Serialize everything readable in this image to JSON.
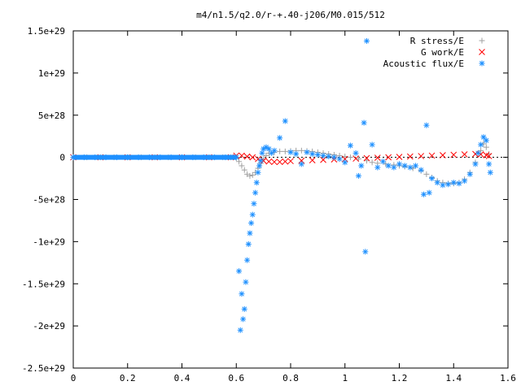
{
  "chart_data": {
    "type": "scatter",
    "title": "m4/n1.5/q2.0/r-+.40-j206/M0.015/512",
    "xlabel": "",
    "ylabel": "",
    "xlim": [
      0,
      1.6
    ],
    "ylim": [
      -2.5e+29,
      1.5e+29
    ],
    "x_ticks": [
      {
        "value": 0,
        "label": "0"
      },
      {
        "value": 0.2,
        "label": "0.2"
      },
      {
        "value": 0.4,
        "label": "0.4"
      },
      {
        "value": 0.6,
        "label": "0.6"
      },
      {
        "value": 0.8,
        "label": "0.8"
      },
      {
        "value": 1.0,
        "label": "1"
      },
      {
        "value": 1.2,
        "label": "1.2"
      },
      {
        "value": 1.4,
        "label": "1.4"
      },
      {
        "value": 1.6,
        "label": "1.6"
      }
    ],
    "y_ticks": [
      {
        "value": 1.5e+29,
        "label": "1.5e+29"
      },
      {
        "value": 1e+29,
        "label": "1e+29"
      },
      {
        "value": 5e+28,
        "label": "5e+28"
      },
      {
        "value": 0,
        "label": "0"
      },
      {
        "value": -5e+28,
        "label": "-5e+28"
      },
      {
        "value": -1e+29,
        "label": "-1e+29"
      },
      {
        "value": -1.5e+29,
        "label": "-1.5e+29"
      },
      {
        "value": -2e+29,
        "label": "-2e+29"
      },
      {
        "value": -2.5e+29,
        "label": "-2.5e+29"
      }
    ],
    "legend_position": "top-right",
    "grid": false,
    "series": [
      {
        "name": "R stress/E",
        "marker": "plus",
        "color": "#a0a0a0",
        "points": [
          [
            0.0,
            0
          ],
          [
            0.05,
            0
          ],
          [
            0.1,
            0
          ],
          [
            0.15,
            0
          ],
          [
            0.2,
            0
          ],
          [
            0.25,
            0
          ],
          [
            0.3,
            0
          ],
          [
            0.35,
            0
          ],
          [
            0.4,
            0
          ],
          [
            0.45,
            0
          ],
          [
            0.5,
            0
          ],
          [
            0.55,
            0
          ],
          [
            0.58,
            0
          ],
          [
            0.6,
            -1e+27
          ],
          [
            0.61,
            -5e+27
          ],
          [
            0.62,
            -1e+28
          ],
          [
            0.63,
            -1.5e+28
          ],
          [
            0.64,
            -2e+28
          ],
          [
            0.65,
            -2.2e+28
          ],
          [
            0.66,
            -2.1e+28
          ],
          [
            0.67,
            -1.8e+28
          ],
          [
            0.68,
            -1.3e+28
          ],
          [
            0.69,
            -7e+27
          ],
          [
            0.7,
            -2e+27
          ],
          [
            0.71,
            2e+27
          ],
          [
            0.72,
            5e+27
          ],
          [
            0.74,
            6e+27
          ],
          [
            0.76,
            7e+27
          ],
          [
            0.78,
            7e+27
          ],
          [
            0.8,
            7.5e+27
          ],
          [
            0.82,
            8e+27
          ],
          [
            0.84,
            8e+27
          ],
          [
            0.86,
            7.5e+27
          ],
          [
            0.88,
            7e+27
          ],
          [
            0.9,
            6e+27
          ],
          [
            0.92,
            5e+27
          ],
          [
            0.94,
            4e+27
          ],
          [
            0.96,
            3e+27
          ],
          [
            0.98,
            2e+27
          ],
          [
            1.0,
            1e+27
          ],
          [
            1.02,
            0.0
          ],
          [
            1.05,
            -2e+27
          ],
          [
            1.08,
            -4e+27
          ],
          [
            1.1,
            -6e+27
          ],
          [
            1.12,
            -7e+27
          ],
          [
            1.15,
            -8e+27
          ],
          [
            1.18,
            -9e+27
          ],
          [
            1.2,
            -1e+28
          ],
          [
            1.22,
            -1.1e+28
          ],
          [
            1.25,
            -1.3e+28
          ],
          [
            1.28,
            -1.6e+28
          ],
          [
            1.3,
            -2e+28
          ],
          [
            1.32,
            -2.4e+28
          ],
          [
            1.34,
            -2.8e+28
          ],
          [
            1.36,
            -3e+28
          ],
          [
            1.38,
            -3.1e+28
          ],
          [
            1.4,
            -3.1e+28
          ],
          [
            1.42,
            -3e+28
          ],
          [
            1.44,
            -2.6e+28
          ],
          [
            1.46,
            -1.8e+28
          ],
          [
            1.48,
            -6e+27
          ],
          [
            1.5,
            8e+27
          ],
          [
            1.51,
            1.6e+28
          ],
          [
            1.52,
            1.2e+28
          ],
          [
            1.53,
            4e+27
          ]
        ]
      },
      {
        "name": "G work/E",
        "marker": "cross",
        "color": "#ff0000",
        "points": [
          [
            0.0,
            0
          ],
          [
            0.1,
            0
          ],
          [
            0.2,
            0
          ],
          [
            0.3,
            0
          ],
          [
            0.4,
            0
          ],
          [
            0.5,
            0
          ],
          [
            0.58,
            0
          ],
          [
            0.6,
            2e+27
          ],
          [
            0.62,
            2e+27
          ],
          [
            0.64,
            1e+27
          ],
          [
            0.66,
            0.0
          ],
          [
            0.68,
            -2e+27
          ],
          [
            0.7,
            -4e+27
          ],
          [
            0.72,
            -5e+27
          ],
          [
            0.74,
            -5.5e+27
          ],
          [
            0.76,
            -5.5e+27
          ],
          [
            0.78,
            -5e+27
          ],
          [
            0.8,
            -4.5e+27
          ],
          [
            0.84,
            -4e+27
          ],
          [
            0.88,
            -3.5e+27
          ],
          [
            0.92,
            -3e+27
          ],
          [
            0.96,
            -2.5e+27
          ],
          [
            1.0,
            -2e+27
          ],
          [
            1.04,
            -1.5e+27
          ],
          [
            1.08,
            -1e+27
          ],
          [
            1.12,
            -5e+26
          ],
          [
            1.16,
            0.0
          ],
          [
            1.2,
            5e+26
          ],
          [
            1.24,
            1e+27
          ],
          [
            1.28,
            1.5e+27
          ],
          [
            1.32,
            2e+27
          ],
          [
            1.36,
            2.5e+27
          ],
          [
            1.4,
            3e+27
          ],
          [
            1.44,
            3.5e+27
          ],
          [
            1.48,
            4e+27
          ],
          [
            1.5,
            3.5e+27
          ],
          [
            1.52,
            2.5e+27
          ],
          [
            1.53,
            1.5e+27
          ]
        ]
      },
      {
        "name": "Acoustic flux/E",
        "marker": "star",
        "color": "#1e90ff",
        "points": [
          [
            0.0,
            0
          ],
          [
            0.04,
            0
          ],
          [
            0.08,
            0
          ],
          [
            0.12,
            0
          ],
          [
            0.16,
            0
          ],
          [
            0.2,
            0
          ],
          [
            0.24,
            0
          ],
          [
            0.28,
            0
          ],
          [
            0.32,
            0
          ],
          [
            0.36,
            0
          ],
          [
            0.4,
            0
          ],
          [
            0.44,
            0
          ],
          [
            0.48,
            0
          ],
          [
            0.52,
            0
          ],
          [
            0.56,
            0
          ],
          [
            0.6,
            0
          ],
          [
            0.61,
            -1.35e+29
          ],
          [
            0.615,
            -2.05e+29
          ],
          [
            0.62,
            -1.62e+29
          ],
          [
            0.625,
            -1.92e+29
          ],
          [
            0.63,
            -1.8e+29
          ],
          [
            0.635,
            -1.48e+29
          ],
          [
            0.64,
            -1.22e+29
          ],
          [
            0.645,
            -1.03e+29
          ],
          [
            0.65,
            -9e+28
          ],
          [
            0.655,
            -7.8e+28
          ],
          [
            0.66,
            -6.8e+28
          ],
          [
            0.665,
            -5.5e+28
          ],
          [
            0.67,
            -4.2e+28
          ],
          [
            0.675,
            -3e+28
          ],
          [
            0.68,
            -1.8e+28
          ],
          [
            0.685,
            -1e+28
          ],
          [
            0.69,
            -4e+27
          ],
          [
            0.695,
            5e+27
          ],
          [
            0.7,
            1e+28
          ],
          [
            0.71,
            1.2e+28
          ],
          [
            0.72,
            1e+28
          ],
          [
            0.73,
            5e+27
          ],
          [
            0.74,
            8e+27
          ],
          [
            0.76,
            2.3e+28
          ],
          [
            0.78,
            4.3e+28
          ],
          [
            0.8,
            6e+27
          ],
          [
            0.82,
            4e+27
          ],
          [
            0.84,
            -8e+27
          ],
          [
            0.86,
            6e+27
          ],
          [
            0.88,
            4e+27
          ],
          [
            0.9,
            3e+27
          ],
          [
            0.92,
            2e+27
          ],
          [
            0.94,
            1e+27
          ],
          [
            0.96,
            0.0
          ],
          [
            0.98,
            -2e+27
          ],
          [
            1.0,
            -6e+27
          ],
          [
            1.02,
            1.4e+28
          ],
          [
            1.04,
            5e+27
          ],
          [
            1.05,
            -2.2e+28
          ],
          [
            1.06,
            -1e+28
          ],
          [
            1.07,
            4.1e+28
          ],
          [
            1.075,
            -1.12e+29
          ],
          [
            1.08,
            1.38e+29
          ],
          [
            1.1,
            1.5e+28
          ],
          [
            1.12,
            -1.2e+28
          ],
          [
            1.14,
            -5e+27
          ],
          [
            1.16,
            -1e+28
          ],
          [
            1.18,
            -1.2e+28
          ],
          [
            1.2,
            -8e+27
          ],
          [
            1.22,
            -1e+28
          ],
          [
            1.24,
            -1.2e+28
          ],
          [
            1.26,
            -1e+28
          ],
          [
            1.28,
            -1.5e+28
          ],
          [
            1.29,
            -4.4e+28
          ],
          [
            1.3,
            3.8e+28
          ],
          [
            1.31,
            -4.2e+28
          ],
          [
            1.32,
            -2.5e+28
          ],
          [
            1.34,
            -3e+28
          ],
          [
            1.36,
            -3.3e+28
          ],
          [
            1.38,
            -3.2e+28
          ],
          [
            1.4,
            -3e+28
          ],
          [
            1.42,
            -3.1e+28
          ],
          [
            1.44,
            -2.8e+28
          ],
          [
            1.46,
            -2e+28
          ],
          [
            1.48,
            -8e+27
          ],
          [
            1.49,
            5e+27
          ],
          [
            1.5,
            1.5e+28
          ],
          [
            1.51,
            2.4e+28
          ],
          [
            1.52,
            2e+28
          ],
          [
            1.53,
            -8e+27
          ],
          [
            1.535,
            -1.8e+28
          ]
        ]
      }
    ]
  }
}
